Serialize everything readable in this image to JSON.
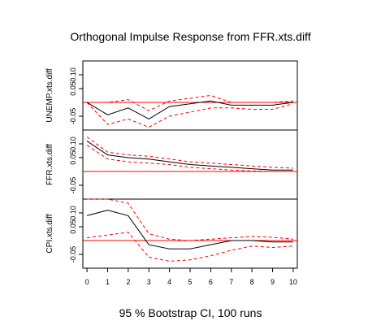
{
  "chart_data": {
    "type": "line",
    "title": "Orthogonal Impulse Response from FFR.xts.diff",
    "footer": "95 % Bootstrap CI,  100 runs",
    "x": [
      0,
      1,
      2,
      3,
      4,
      5,
      6,
      7,
      8,
      9,
      10
    ],
    "x_ticks": [
      "0",
      "1",
      "2",
      "3",
      "4",
      "5",
      "6",
      "7",
      "8",
      "9",
      "10"
    ],
    "xlim": [
      -0.2,
      10.2
    ],
    "ylim": [
      -0.1,
      0.15
    ],
    "y_ticks": [
      -0.05,
      0.05,
      0.1
    ],
    "y_tick_labels": [
      "-0.05",
      "0.05",
      "0.10"
    ],
    "grid": false,
    "colors": {
      "response": "#000000",
      "ci": "#ff0000",
      "zero": "#ff0000"
    },
    "panels": [
      {
        "ylabel": "UNEMP.xts.diff",
        "response": [
          0.0,
          -0.045,
          -0.02,
          -0.06,
          -0.015,
          -0.005,
          0.005,
          -0.01,
          -0.01,
          -0.01,
          0.0
        ],
        "lower": [
          0.0,
          -0.08,
          -0.06,
          -0.09,
          -0.05,
          -0.035,
          -0.02,
          -0.02,
          -0.025,
          -0.025,
          -0.005
        ],
        "upper": [
          0.0,
          0.0,
          0.01,
          -0.03,
          0.005,
          0.015,
          0.025,
          0.0,
          0.0,
          0.0,
          0.005
        ]
      },
      {
        "ylabel": "FFR.xts.diff",
        "response": [
          0.11,
          0.06,
          0.05,
          0.045,
          0.035,
          0.025,
          0.02,
          0.015,
          0.01,
          0.005,
          0.005
        ],
        "lower": [
          0.095,
          0.045,
          0.035,
          0.03,
          0.025,
          0.015,
          0.01,
          0.005,
          0.002,
          0.0,
          0.0
        ],
        "upper": [
          0.125,
          0.07,
          0.06,
          0.055,
          0.045,
          0.035,
          0.03,
          0.025,
          0.02,
          0.015,
          0.012
        ]
      },
      {
        "ylabel": "CPI.xts.diff",
        "response": [
          0.09,
          0.11,
          0.09,
          -0.015,
          -0.03,
          -0.03,
          -0.015,
          0.0,
          0.0,
          -0.005,
          -0.005
        ],
        "lower": [
          0.01,
          0.02,
          0.03,
          -0.06,
          -0.075,
          -0.07,
          -0.055,
          -0.035,
          -0.02,
          -0.025,
          -0.02
        ],
        "upper": [
          0.15,
          0.15,
          0.135,
          0.025,
          0.005,
          0.0,
          0.005,
          0.01,
          0.015,
          0.012,
          0.005
        ]
      }
    ]
  }
}
